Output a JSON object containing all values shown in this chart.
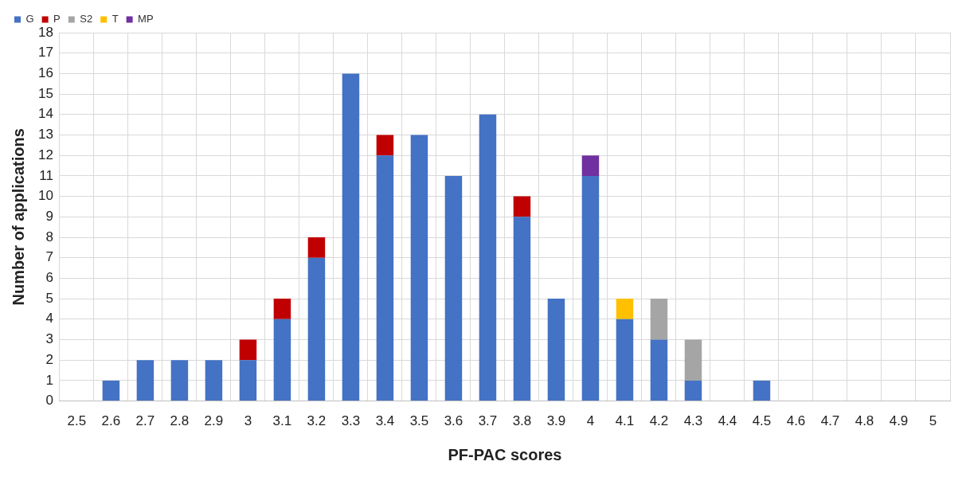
{
  "chart_data": {
    "type": "bar",
    "stacked": true,
    "xlabel": "PF-PAC scores",
    "ylabel": "Number of applications",
    "categories": [
      "2.5",
      "2.6",
      "2.7",
      "2.8",
      "2.9",
      "3",
      "3.1",
      "3.2",
      "3.3",
      "3.4",
      "3.5",
      "3.6",
      "3.7",
      "3.8",
      "3.9",
      "4",
      "4.1",
      "4.2",
      "4.3",
      "4.4",
      "4.5",
      "4.6",
      "4.7",
      "4.8",
      "4.9",
      "5"
    ],
    "series": [
      {
        "name": "G",
        "color": "#4472c4",
        "values": [
          0,
          1,
          2,
          2,
          2,
          2,
          4,
          7,
          16,
          12,
          13,
          11,
          14,
          9,
          5,
          11,
          4,
          3,
          1,
          0,
          1,
          0,
          0,
          0,
          0,
          0
        ]
      },
      {
        "name": "P",
        "color": "#c00000",
        "values": [
          null,
          null,
          null,
          null,
          null,
          1,
          1,
          1,
          null,
          1,
          null,
          null,
          null,
          1,
          null,
          null,
          null,
          null,
          null,
          null,
          null,
          null,
          null,
          null,
          null,
          null
        ]
      },
      {
        "name": "S2",
        "color": "#a5a5a5",
        "values": [
          null,
          null,
          null,
          null,
          null,
          null,
          null,
          null,
          null,
          null,
          null,
          null,
          null,
          null,
          null,
          null,
          null,
          2,
          2,
          null,
          null,
          null,
          null,
          null,
          null,
          null
        ]
      },
      {
        "name": "T",
        "color": "#ffc000",
        "values": [
          null,
          null,
          null,
          null,
          null,
          null,
          null,
          null,
          null,
          null,
          null,
          null,
          null,
          null,
          null,
          null,
          1,
          null,
          null,
          null,
          null,
          null,
          null,
          null,
          null,
          null
        ]
      },
      {
        "name": "MP",
        "color": "#7030a0",
        "values": [
          null,
          null,
          null,
          null,
          null,
          null,
          null,
          null,
          null,
          null,
          null,
          null,
          null,
          null,
          null,
          1,
          null,
          null,
          null,
          null,
          null,
          null,
          null,
          null,
          null,
          null
        ]
      }
    ],
    "ylim": [
      0,
      18
    ],
    "yticks": [
      0,
      1,
      2,
      3,
      4,
      5,
      6,
      7,
      8,
      9,
      10,
      11,
      12,
      13,
      14,
      15,
      16,
      17,
      18
    ],
    "grid": true,
    "legend": "top left"
  }
}
